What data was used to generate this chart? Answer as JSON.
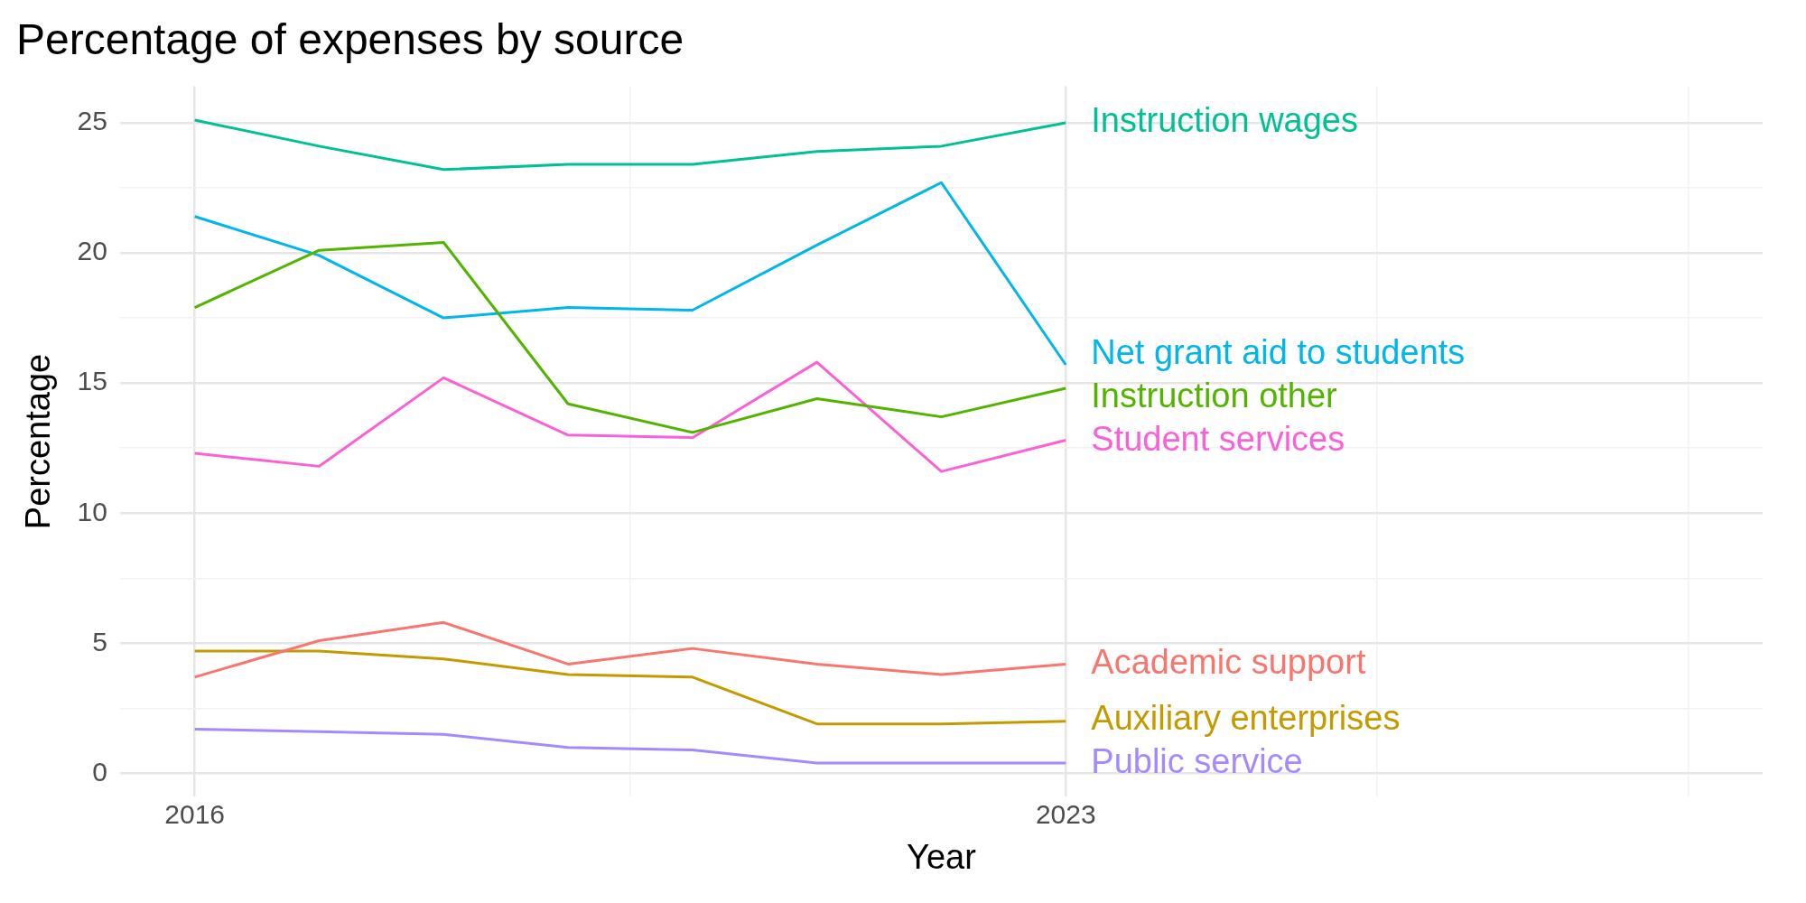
{
  "chart_data": {
    "type": "line",
    "title": "Percentage of expenses by source",
    "xlabel": "Year",
    "ylabel": "Percentage",
    "x": [
      2016,
      2017,
      2018,
      2019,
      2020,
      2021,
      2022,
      2023
    ],
    "xlim": [
      2015.4,
      2028.6
    ],
    "xticks": [
      2016,
      {
        "value": 2019.5,
        "label": null
      },
      2023,
      {
        "value": 2025.5,
        "label": null
      },
      {
        "value": 2028,
        "label": null
      }
    ],
    "ylim": [
      -0.9,
      26.4
    ],
    "yticks": [
      0,
      {
        "value": 2.5,
        "label": null
      },
      5,
      {
        "value": 7.5,
        "label": null
      },
      10,
      {
        "value": 12.5,
        "label": null
      },
      15,
      {
        "value": 17.5,
        "label": null
      },
      20,
      {
        "value": 22.5,
        "label": null
      },
      25
    ],
    "grid": true,
    "legend": false,
    "marker": "none",
    "line_style": "solid",
    "series": [
      {
        "name": "Academic support",
        "color": "#F8766D",
        "values": [
          3.7,
          5.1,
          5.8,
          4.2,
          4.8,
          4.2,
          3.8,
          4.2
        ]
      },
      {
        "name": "Auxiliary enterprises",
        "color": "#C49A00",
        "values": [
          4.7,
          4.7,
          4.4,
          3.8,
          3.7,
          1.9,
          1.9,
          2.0
        ]
      },
      {
        "name": "Instruction other",
        "color": "#53B400",
        "values": [
          17.9,
          20.1,
          20.4,
          14.2,
          13.1,
          14.4,
          13.7,
          14.8
        ]
      },
      {
        "name": "Instruction wages",
        "color": "#00C094",
        "values": [
          25.1,
          24.1,
          23.2,
          23.4,
          23.4,
          23.9,
          24.1,
          25.0
        ]
      },
      {
        "name": "Net grant aid to students",
        "color": "#00B6EB",
        "values": [
          21.4,
          19.9,
          17.5,
          17.9,
          17.8,
          20.3,
          22.7,
          15.7
        ]
      },
      {
        "name": "Public service",
        "color": "#A58AFF",
        "values": [
          1.7,
          1.6,
          1.5,
          1.0,
          0.9,
          0.4,
          0.4,
          0.4
        ]
      },
      {
        "name": "Student services",
        "color": "#FB61D7",
        "values": [
          12.3,
          11.8,
          15.2,
          13.0,
          12.9,
          15.8,
          11.6,
          12.8
        ]
      }
    ]
  }
}
